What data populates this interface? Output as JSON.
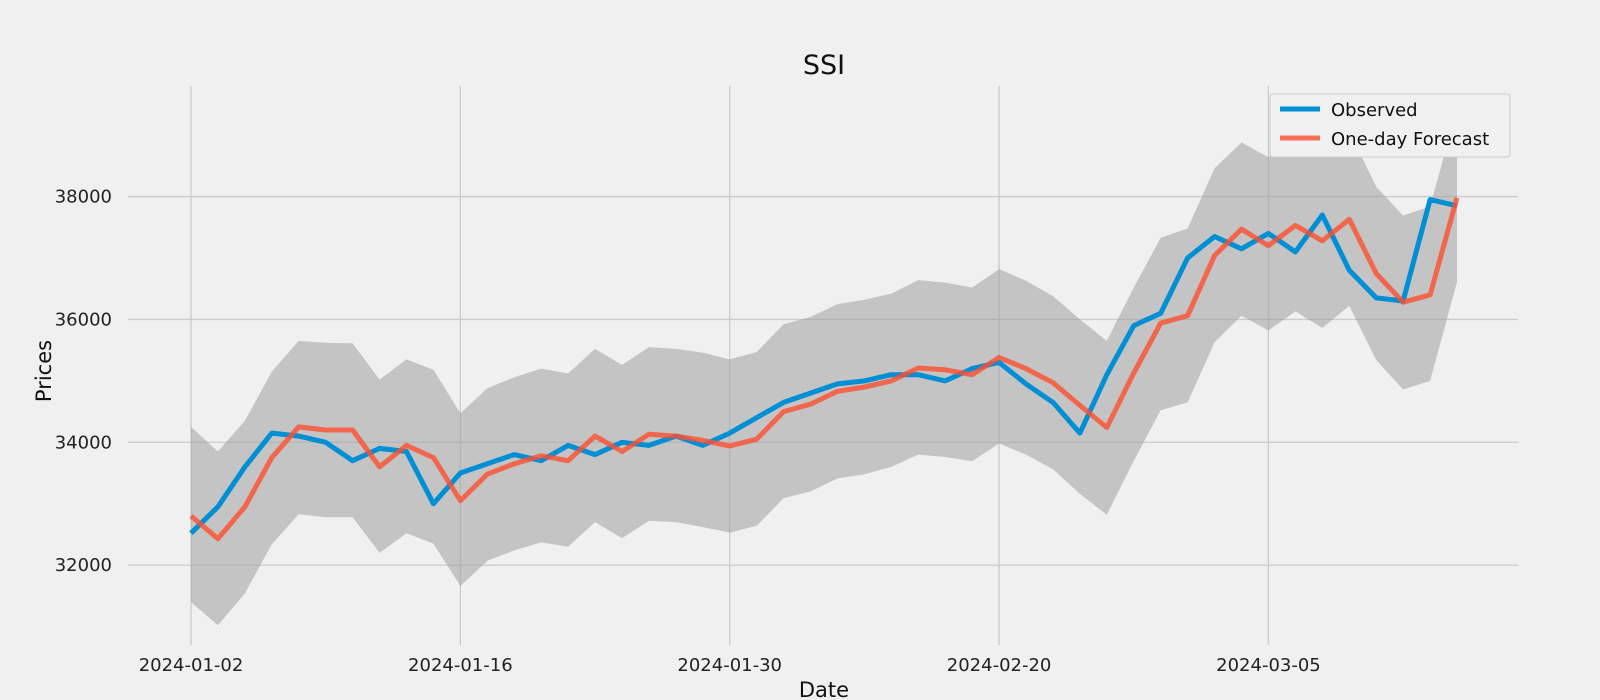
{
  "chart_data": {
    "type": "line",
    "title": "SSI",
    "xlabel": "Date",
    "ylabel": "Prices",
    "x_ticks": [
      "2024-01-02",
      "2024-01-16",
      "2024-01-30",
      "2024-02-20",
      "2024-03-05"
    ],
    "y_ticks": [
      32000,
      34000,
      36000,
      38000
    ],
    "ylim": [
      30700,
      39800
    ],
    "grid": true,
    "legend_position": "top-right",
    "colors": {
      "observed": "#008fd5",
      "forecast": "#fc4f30",
      "band": "#bdbdbd",
      "background": "#f0f0f0",
      "grid": "#cbcbcb"
    },
    "x": [
      "2024-01-02",
      "2024-01-03",
      "2024-01-04",
      "2024-01-05",
      "2024-01-08",
      "2024-01-09",
      "2024-01-10",
      "2024-01-11",
      "2024-01-12",
      "2024-01-15",
      "2024-01-16",
      "2024-01-17",
      "2024-01-18",
      "2024-01-19",
      "2024-01-22",
      "2024-01-23",
      "2024-01-24",
      "2024-01-25",
      "2024-01-26",
      "2024-01-29",
      "2024-01-30",
      "2024-01-31",
      "2024-02-01",
      "2024-02-02",
      "2024-02-05",
      "2024-02-06",
      "2024-02-07",
      "2024-02-15",
      "2024-02-16",
      "2024-02-19",
      "2024-02-20",
      "2024-02-21",
      "2024-02-22",
      "2024-02-23",
      "2024-02-26",
      "2024-02-27",
      "2024-02-28",
      "2024-02-29",
      "2024-03-01",
      "2024-03-04",
      "2024-03-05",
      "2024-03-06",
      "2024-03-07",
      "2024-03-08",
      "2024-03-11",
      "2024-03-12",
      "2024-03-13",
      "2024-03-14"
    ],
    "series": [
      {
        "name": "Observed",
        "values": [
          32520,
          32950,
          33600,
          34150,
          34100,
          34000,
          33700,
          33900,
          33850,
          33000,
          33500,
          33650,
          33800,
          33700,
          33950,
          33800,
          34000,
          33950,
          34100,
          33950,
          34150,
          34400,
          34650,
          34800,
          34950,
          35000,
          35100,
          35100,
          35000,
          35200,
          35300,
          34950,
          34650,
          34150,
          35100,
          35900,
          36100,
          37000,
          37350,
          37150,
          37400,
          37100,
          37700,
          36800,
          36350,
          36300,
          37950,
          37850
        ]
      },
      {
        "name": "One-day Forecast",
        "values": [
          32800,
          32430,
          32950,
          33750,
          34250,
          34200,
          34200,
          33600,
          33950,
          33750,
          33050,
          33480,
          33650,
          33780,
          33700,
          34100,
          33850,
          34130,
          34100,
          34030,
          33940,
          34050,
          34500,
          34620,
          34830,
          34900,
          35000,
          35210,
          35180,
          35100,
          35380,
          35200,
          34970,
          34600,
          34240,
          35130,
          35940,
          36060,
          37040,
          37470,
          37200,
          37530,
          37280,
          37630,
          36750,
          36280,
          36400,
          37980
        ]
      }
    ],
    "band_upper": [
      34250,
      33850,
      34350,
      35150,
      35650,
      35620,
      35610,
      35020,
      35350,
      35180,
      34470,
      34880,
      35060,
      35200,
      35120,
      35520,
      35260,
      35550,
      35520,
      35460,
      35350,
      35470,
      35920,
      36040,
      36250,
      36320,
      36420,
      36640,
      36600,
      36520,
      36820,
      36630,
      36380,
      36000,
      35650,
      36520,
      37330,
      37480,
      38460,
      38880,
      38640,
      38950,
      38700,
      39060,
      38160,
      37690,
      37840,
      39420
    ],
    "band_lower": [
      31400,
      31020,
      31540,
      32340,
      32830,
      32780,
      32780,
      32200,
      32520,
      32350,
      31660,
      32070,
      32240,
      32370,
      32300,
      32700,
      32440,
      32720,
      32700,
      32620,
      32530,
      32640,
      33090,
      33200,
      33410,
      33480,
      33600,
      33800,
      33760,
      33690,
      33980,
      33800,
      33560,
      33160,
      32820,
      33700,
      34520,
      34650,
      35630,
      36060,
      35820,
      36130,
      35860,
      36220,
      35340,
      34860,
      35000,
      36610
    ]
  }
}
